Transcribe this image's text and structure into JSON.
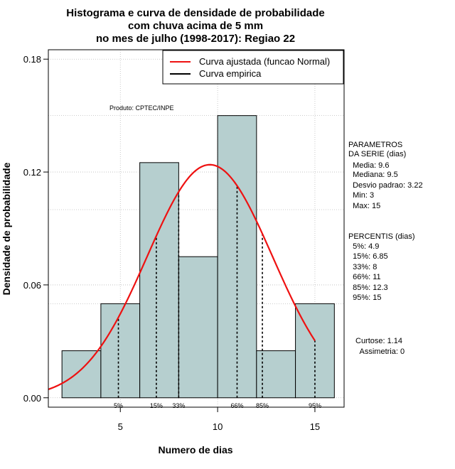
{
  "chart_data": {
    "type": "bar",
    "title": [
      "Histograma e curva de densidade de probabilidade",
      "com chuva acima de 5 mm",
      "no mes de julho (1998-2017): Regiao 22"
    ],
    "xlabel": "Numero de dias",
    "ylabel": "Densidade de probabilidade",
    "xlim": [
      1.3,
      16.5
    ],
    "ylim": [
      -0.005,
      0.185
    ],
    "x_ticks": [
      5,
      10,
      15
    ],
    "y_ticks": [
      0,
      0.06,
      0.12,
      0.18
    ],
    "y_tick_labels": [
      "0.00",
      "0.06",
      "0.12",
      "0.18"
    ],
    "grid": true,
    "bar_color": "#b6cfcf",
    "curve_color": "#ee1111",
    "bins": [
      {
        "start": 2,
        "end": 4,
        "density": 0.025
      },
      {
        "start": 4,
        "end": 6,
        "density": 0.05
      },
      {
        "start": 6,
        "end": 8,
        "density": 0.125
      },
      {
        "start": 8,
        "end": 10,
        "density": 0.075
      },
      {
        "start": 10,
        "end": 12,
        "density": 0.15
      },
      {
        "start": 12,
        "end": 14,
        "density": 0.025
      },
      {
        "start": 14,
        "end": 16,
        "density": 0.05
      }
    ],
    "normal_fit": {
      "mean": 9.6,
      "sd": 3.22,
      "x_from": 1.3,
      "x_to": 15
    },
    "percentiles": [
      {
        "label": "5%",
        "value": 4.9
      },
      {
        "label": "15%",
        "value": 6.85
      },
      {
        "label": "33%",
        "value": 8
      },
      {
        "label": "66%",
        "value": 11
      },
      {
        "label": "85%",
        "value": 12.3
      },
      {
        "label": "95%",
        "value": 15
      }
    ],
    "legend": {
      "position": "top-right",
      "items": [
        {
          "label": "Curva ajustada (funcao Normal)",
          "color": "#ee1111"
        },
        {
          "label": "Curva empirica",
          "color": "#000000"
        }
      ]
    },
    "product_label": "Produto: CPTEC/INPE",
    "parametros": [
      "PARAMETROS",
      "DA SERIE (dias)",
      "  Media: 9.6",
      "  Mediana: 9.5",
      "  Desvio padrao: 3.22",
      "  Min: 3",
      "  Max: 15"
    ],
    "percentis_text": [
      "PERCENTIS (dias)",
      "  5%: 4.9",
      "  15%: 6.85",
      "  33%: 8",
      "  66%: 11",
      "  85%: 12.3",
      "  95%: 15"
    ],
    "shape_stats": [
      "Curtose: 1.14",
      "  Assimetria: 0"
    ]
  }
}
